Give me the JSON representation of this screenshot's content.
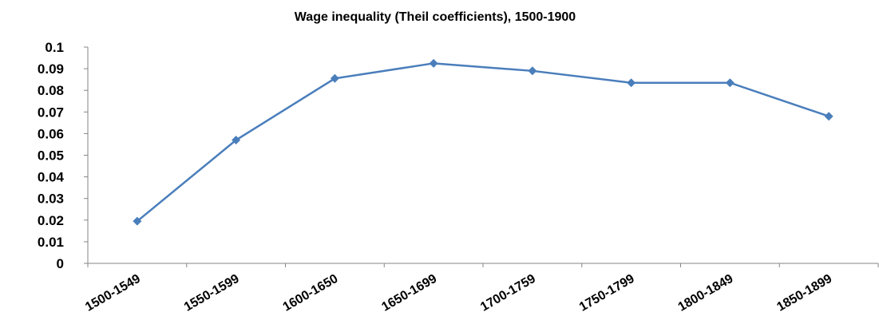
{
  "chart_data": {
    "type": "line",
    "title": "Wage inequality (Theil coefficients), 1500-1900",
    "categories": [
      "1500-1549",
      "1550-1599",
      "1600-1650",
      "1650-1699",
      "1700-1759",
      "1750-1799",
      "1800-1849",
      "1850-1899"
    ],
    "values": [
      0.0195,
      0.057,
      0.0855,
      0.0925,
      0.089,
      0.0835,
      0.0835,
      0.068
    ],
    "color": "#4a7ebb",
    "ylim": [
      0,
      0.1
    ],
    "yticks": [
      0,
      0.01,
      0.02,
      0.03,
      0.04,
      0.05,
      0.06,
      0.07,
      0.08,
      0.09,
      0.1
    ],
    "grid": false
  }
}
